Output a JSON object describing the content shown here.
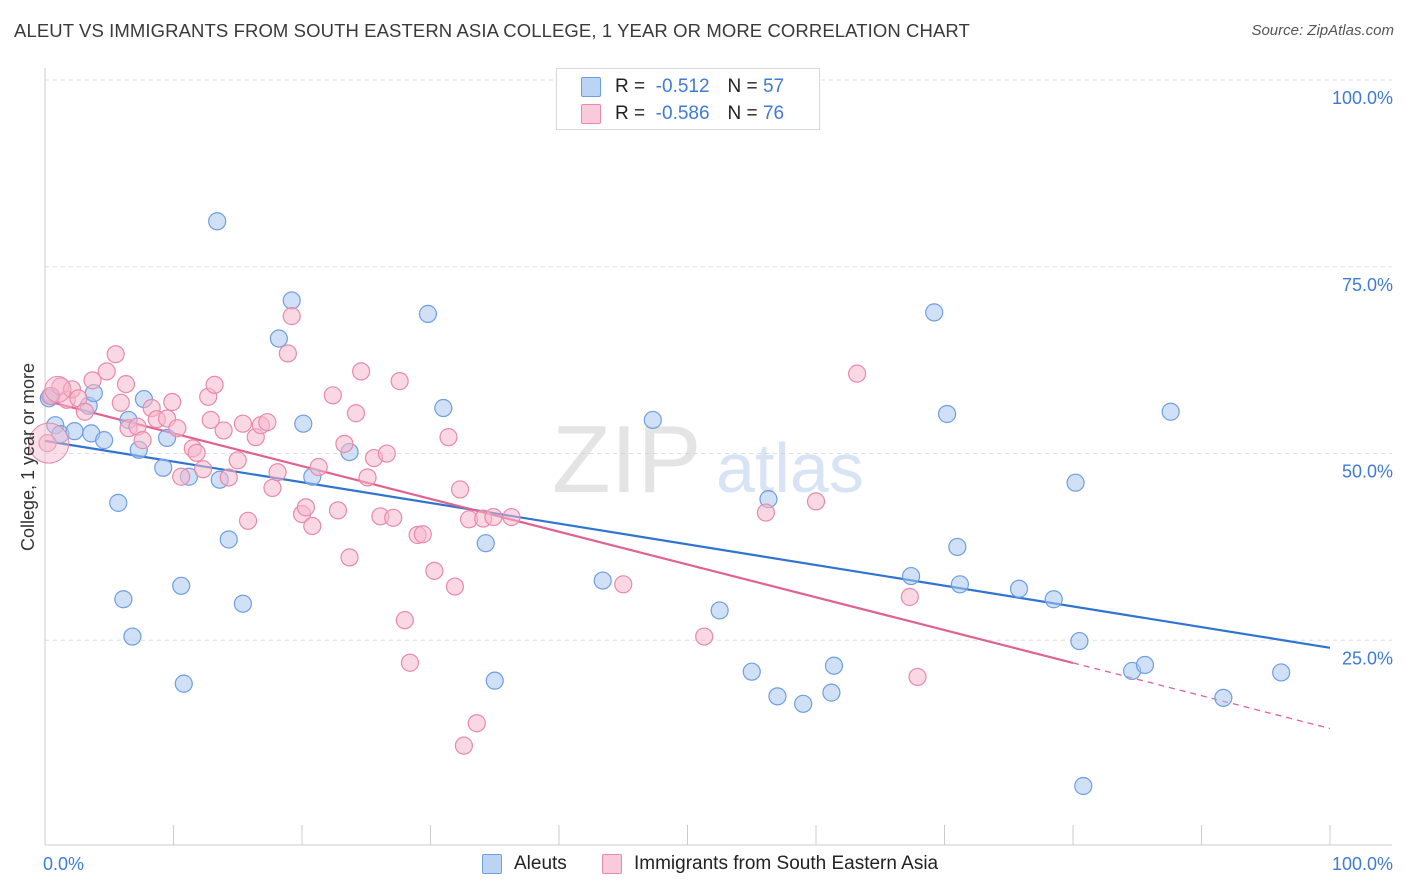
{
  "title": "ALEUT VS IMMIGRANTS FROM SOUTH EASTERN ASIA COLLEGE, 1 YEAR OR MORE CORRELATION CHART",
  "source": "Source: ZipAtlas.com",
  "watermark": {
    "zip": "ZIP",
    "atlas": "atlas"
  },
  "legend": {
    "rows": [
      {
        "r_label": "R =",
        "r_value": "-0.512",
        "n_label": "N =",
        "n_value": "57"
      },
      {
        "r_label": "R =",
        "r_value": "-0.586",
        "n_label": "N =",
        "n_value": "76"
      }
    ]
  },
  "bottom_legend": [
    "Aleuts",
    "Immigrants from South Eastern Asia"
  ],
  "colors": {
    "blue_fill": "#a9c8f0",
    "blue_stroke": "#6f9ee0",
    "blue_line": "#2f74d0",
    "pink_fill": "#f6b8cc",
    "pink_stroke": "#e88aa8",
    "pink_line": "#e0628e",
    "tick_blue": "#3e7bd6",
    "grid": "#dddddd"
  },
  "chart_data": {
    "type": "scatter",
    "title": "ALEUT VS IMMIGRANTS FROM SOUTH EASTERN ASIA COLLEGE, 1 YEAR OR MORE CORRELATION CHART",
    "xlabel": "",
    "ylabel": "College, 1 year or more",
    "xlim": [
      0,
      100
    ],
    "ylim": [
      0,
      100
    ],
    "x_tick_labels": [
      "0.0%",
      "100.0%"
    ],
    "y_ticks": [
      25,
      50,
      75,
      100
    ],
    "y_tick_labels": [
      "25.0%",
      "50.0%",
      "75.0%",
      "100.0%"
    ],
    "grid": true,
    "series": [
      {
        "name": "Aleuts",
        "r": -0.512,
        "n": 57,
        "trend": {
          "x0": 0,
          "y0": 54.1,
          "x1": 100,
          "y1": 26.4,
          "dashed_from": null
        },
        "points": [
          [
            0.3,
            59.8
          ],
          [
            0.5,
            60.1
          ],
          [
            0.8,
            56.2
          ],
          [
            1.2,
            55.0
          ],
          [
            2.3,
            55.4
          ],
          [
            3.4,
            58.8
          ],
          [
            3.6,
            55.1
          ],
          [
            3.8,
            60.5
          ],
          [
            4.6,
            54.2
          ],
          [
            5.7,
            45.8
          ],
          [
            6.1,
            32.9
          ],
          [
            6.8,
            27.9
          ],
          [
            7.3,
            52.9
          ],
          [
            6.5,
            56.9
          ],
          [
            7.7,
            59.7
          ],
          [
            9.2,
            50.5
          ],
          [
            9.5,
            54.5
          ],
          [
            10.6,
            34.7
          ],
          [
            10.8,
            21.6
          ],
          [
            11.2,
            49.3
          ],
          [
            13.4,
            83.5
          ],
          [
            13.6,
            48.9
          ],
          [
            14.3,
            40.9
          ],
          [
            15.4,
            32.3
          ],
          [
            18.2,
            67.8
          ],
          [
            19.2,
            72.9
          ],
          [
            20.1,
            56.4
          ],
          [
            20.8,
            49.3
          ],
          [
            23.7,
            52.6
          ],
          [
            29.8,
            71.1
          ],
          [
            31.0,
            58.5
          ],
          [
            34.3,
            40.4
          ],
          [
            35.0,
            22.0
          ],
          [
            43.4,
            35.4
          ],
          [
            47.3,
            56.9
          ],
          [
            52.5,
            31.4
          ],
          [
            55.0,
            23.2
          ],
          [
            56.3,
            46.3
          ],
          [
            57.0,
            19.9
          ],
          [
            59.0,
            18.9
          ],
          [
            61.2,
            20.4
          ],
          [
            61.4,
            24.0
          ],
          [
            67.4,
            36.0
          ],
          [
            69.2,
            71.3
          ],
          [
            70.2,
            57.7
          ],
          [
            71.0,
            39.9
          ],
          [
            71.2,
            34.9
          ],
          [
            75.8,
            34.3
          ],
          [
            78.5,
            32.9
          ],
          [
            80.2,
            48.5
          ],
          [
            80.5,
            27.3
          ],
          [
            80.8,
            7.9
          ],
          [
            84.6,
            23.3
          ],
          [
            85.6,
            24.1
          ],
          [
            87.6,
            58.0
          ],
          [
            91.7,
            19.7
          ],
          [
            96.2,
            23.1
          ]
        ]
      },
      {
        "name": "Immigrants from South Eastern Asia",
        "r": -0.586,
        "n": 76,
        "trend": {
          "x0": 0,
          "y0": 59.5,
          "x1": 100,
          "y1": 15.6,
          "dashed_from": 80
        },
        "points": [
          [
            0.2,
            53.8
          ],
          [
            0.4,
            60.1
          ],
          [
            1.2,
            61.4
          ],
          [
            1.7,
            59.6
          ],
          [
            2.1,
            61.0
          ],
          [
            2.6,
            59.8
          ],
          [
            3.1,
            58.0
          ],
          [
            3.7,
            62.2
          ],
          [
            4.8,
            63.4
          ],
          [
            5.5,
            65.7
          ],
          [
            5.9,
            59.2
          ],
          [
            6.3,
            61.7
          ],
          [
            6.5,
            55.8
          ],
          [
            7.2,
            56.0
          ],
          [
            7.6,
            54.2
          ],
          [
            8.3,
            58.5
          ],
          [
            8.7,
            57.0
          ],
          [
            9.5,
            57.1
          ],
          [
            9.9,
            59.3
          ],
          [
            10.3,
            55.8
          ],
          [
            10.6,
            49.3
          ],
          [
            11.5,
            53.1
          ],
          [
            11.8,
            52.5
          ],
          [
            12.3,
            50.3
          ],
          [
            12.7,
            60.0
          ],
          [
            12.9,
            56.9
          ],
          [
            13.2,
            61.6
          ],
          [
            13.9,
            55.5
          ],
          [
            14.3,
            49.2
          ],
          [
            15.0,
            51.5
          ],
          [
            15.4,
            56.4
          ],
          [
            15.8,
            43.4
          ],
          [
            16.4,
            54.6
          ],
          [
            16.8,
            56.2
          ],
          [
            17.3,
            56.6
          ],
          [
            17.7,
            47.8
          ],
          [
            18.1,
            49.9
          ],
          [
            18.9,
            65.8
          ],
          [
            19.2,
            70.8
          ],
          [
            20.0,
            44.3
          ],
          [
            20.3,
            45.2
          ],
          [
            20.8,
            42.7
          ],
          [
            21.3,
            50.6
          ],
          [
            22.4,
            60.2
          ],
          [
            22.8,
            44.8
          ],
          [
            23.3,
            53.7
          ],
          [
            23.7,
            38.5
          ],
          [
            24.2,
            57.8
          ],
          [
            24.6,
            63.4
          ],
          [
            25.1,
            49.2
          ],
          [
            25.6,
            51.8
          ],
          [
            26.1,
            44.0
          ],
          [
            26.6,
            52.4
          ],
          [
            27.1,
            43.8
          ],
          [
            27.6,
            62.1
          ],
          [
            28.0,
            30.1
          ],
          [
            28.4,
            24.4
          ],
          [
            29.0,
            41.5
          ],
          [
            29.4,
            41.6
          ],
          [
            30.3,
            36.7
          ],
          [
            31.4,
            54.6
          ],
          [
            31.9,
            34.6
          ],
          [
            32.3,
            47.6
          ],
          [
            32.6,
            13.3
          ],
          [
            33.0,
            43.6
          ],
          [
            33.6,
            16.3
          ],
          [
            34.1,
            43.7
          ],
          [
            34.9,
            43.9
          ],
          [
            36.3,
            43.9
          ],
          [
            45.0,
            34.9
          ],
          [
            51.3,
            27.9
          ],
          [
            56.1,
            44.5
          ],
          [
            60.0,
            46.0
          ],
          [
            63.2,
            63.1
          ],
          [
            67.3,
            33.2
          ],
          [
            67.9,
            22.5
          ]
        ]
      }
    ]
  }
}
